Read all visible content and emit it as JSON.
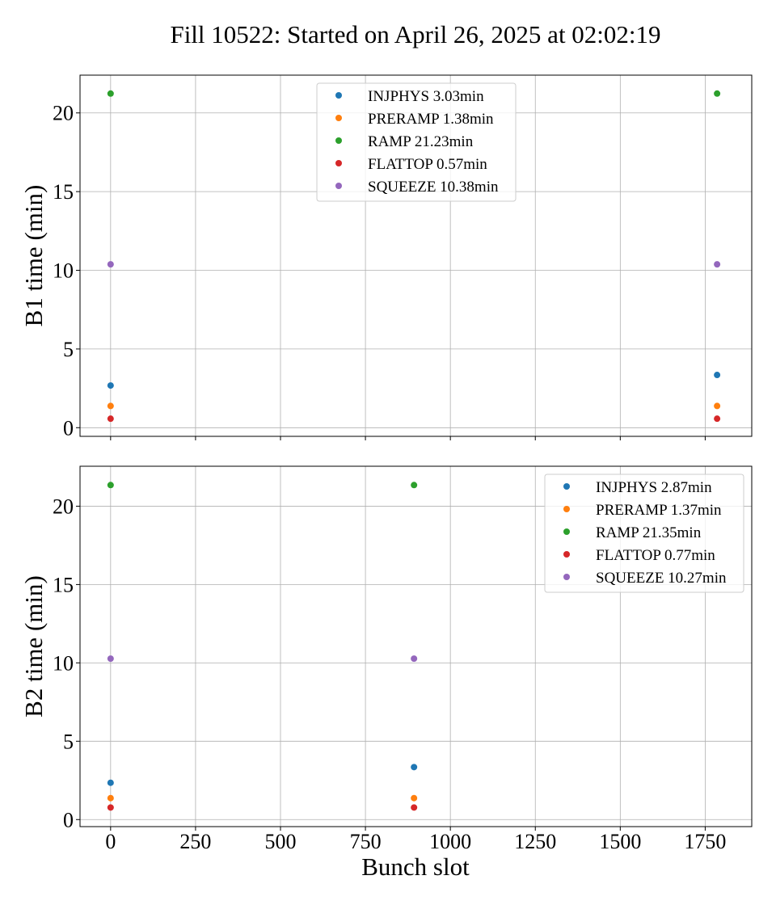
{
  "title": "Fill 10522: Started on April 26, 2025 at 02:02:19",
  "xlabel": "Bunch slot",
  "colors": {
    "INJPHYS": "#1f77b4",
    "PRERAMP": "#ff7f0e",
    "RAMP": "#2ca02c",
    "FLATTOP": "#d62728",
    "SQUEEZE": "#9467bd"
  },
  "chart_data": [
    {
      "type": "scatter",
      "ylabel": "B1 time (min)",
      "xlim": [
        -90,
        1887
      ],
      "ylim": [
        -0.55,
        22.4
      ],
      "xticks": [
        "0",
        "250",
        "500",
        "750",
        "1000",
        "1250",
        "1500",
        "1750"
      ],
      "yticks": [
        "0",
        "5",
        "10",
        "15",
        "20"
      ],
      "grid": true,
      "show_xticklabels": false,
      "legend_position": "upper center",
      "series": [
        {
          "name": "INJPHYS 3.03min",
          "phase": "INJPHYS",
          "x": [
            0,
            1785
          ],
          "y": [
            2.68,
            3.35
          ]
        },
        {
          "name": "PRERAMP 1.38min",
          "phase": "PRERAMP",
          "x": [
            0,
            1785
          ],
          "y": [
            1.38,
            1.38
          ]
        },
        {
          "name": "RAMP 21.23min",
          "phase": "RAMP",
          "x": [
            0,
            1785
          ],
          "y": [
            21.23,
            21.23
          ]
        },
        {
          "name": "FLATTOP 0.57min",
          "phase": "FLATTOP",
          "x": [
            0,
            1785
          ],
          "y": [
            0.57,
            0.57
          ]
        },
        {
          "name": "SQUEEZE 10.38min",
          "phase": "SQUEEZE",
          "x": [
            0,
            1785
          ],
          "y": [
            10.38,
            10.38
          ]
        }
      ]
    },
    {
      "type": "scatter",
      "ylabel": "B2 time (min)",
      "xlabel": "Bunch slot",
      "xlim": [
        -90,
        1887
      ],
      "ylim": [
        -0.45,
        22.55
      ],
      "xticks": [
        "0",
        "250",
        "500",
        "750",
        "1000",
        "1250",
        "1500",
        "1750"
      ],
      "yticks": [
        "0",
        "5",
        "10",
        "15",
        "20"
      ],
      "grid": true,
      "show_xticklabels": true,
      "legend_position": "upper right",
      "series": [
        {
          "name": "INJPHYS 2.87min",
          "phase": "INJPHYS",
          "x": [
            0,
            893
          ],
          "y": [
            2.35,
            3.35
          ]
        },
        {
          "name": "PRERAMP 1.37min",
          "phase": "PRERAMP",
          "x": [
            0,
            893
          ],
          "y": [
            1.37,
            1.37
          ]
        },
        {
          "name": "RAMP 21.35min",
          "phase": "RAMP",
          "x": [
            0,
            893
          ],
          "y": [
            21.35,
            21.35
          ]
        },
        {
          "name": "FLATTOP 0.77min",
          "phase": "FLATTOP",
          "x": [
            0,
            893
          ],
          "y": [
            0.77,
            0.77
          ]
        },
        {
          "name": "SQUEEZE 10.27min",
          "phase": "SQUEEZE",
          "x": [
            0,
            893
          ],
          "y": [
            10.27,
            10.27
          ]
        }
      ]
    }
  ]
}
